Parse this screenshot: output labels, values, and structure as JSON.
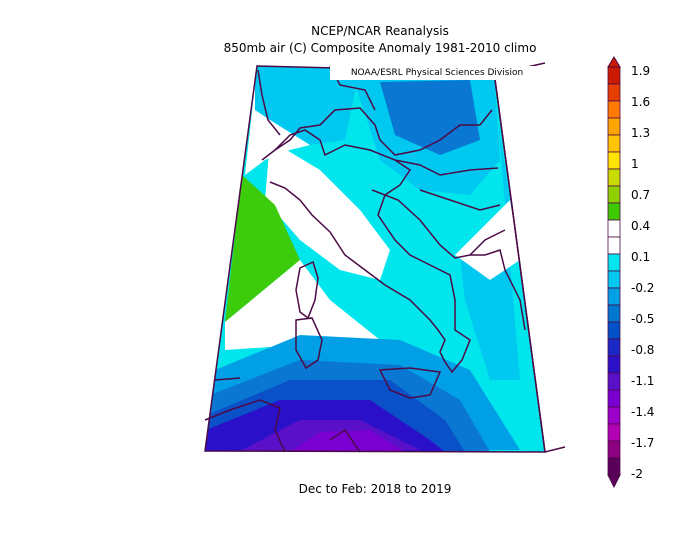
{
  "title": "NCEP/NCAR Reanalysis",
  "subtitle": "850mb air (C) Composite Anomaly 1981-2010 climo",
  "credit": "NOAA/ESRL Physical Sciences Division",
  "footer": "Dec to Feb: 2018 to 2019",
  "colorbar": {
    "labels": [
      "1.9",
      "1.6",
      "1.3",
      "1",
      "0.7",
      "0.4",
      "0.1",
      "-0.2",
      "-0.5",
      "-0.8",
      "-1.1",
      "-1.4",
      "-1.7",
      "-2"
    ],
    "colors": [
      "#cc1a00",
      "#e64000",
      "#ff7a00",
      "#ffa500",
      "#ffc400",
      "#ffe400",
      "#c8dc00",
      "#8fd000",
      "#3ec800",
      "#ffffff",
      "#ffffff",
      "#00e5ee",
      "#00c8f0",
      "#00a0e6",
      "#0078d2",
      "#0050c8",
      "#1b28c8",
      "#2a10c8",
      "#5a10c8",
      "#7a00d2",
      "#9a00c8",
      "#b400b4",
      "#8c0082",
      "#5a005a"
    ]
  },
  "map": {
    "region": "Italy / Central Mediterranean",
    "colors": {
      "border": "#4b0a46",
      "green": "#3ccc0c",
      "cyan": "#00e6ec",
      "lightblue": "#00c8f0",
      "midblue": "#009fe6",
      "steelblue": "#0a78d2",
      "blue": "#0a50c8",
      "deepblue": "#2a10c8",
      "purple": "#5a10c8",
      "violet": "#7a00d2"
    }
  }
}
